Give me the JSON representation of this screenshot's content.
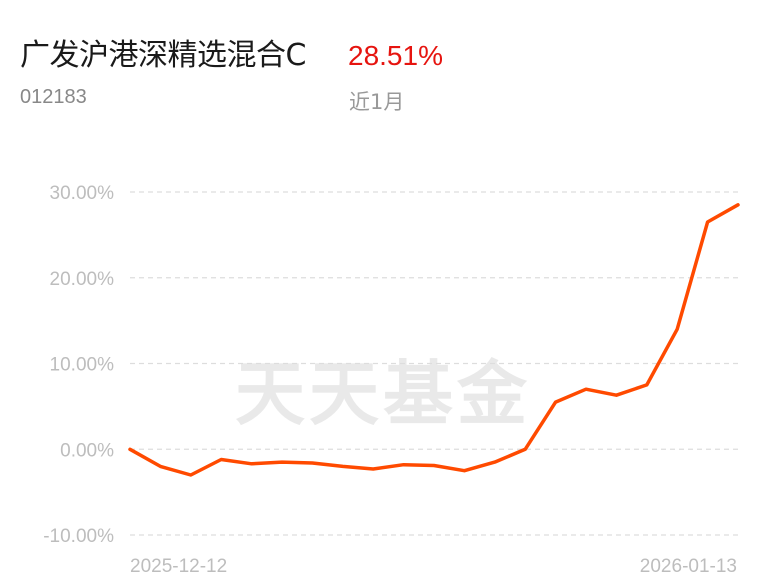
{
  "header": {
    "fund_name": "广发沪港深精选混合C",
    "return_pct": "28.51%",
    "fund_code": "012183",
    "period": "近1月"
  },
  "watermark": "天天基金",
  "colors": {
    "line": "#ff4a00",
    "return": "#e6140f",
    "grid": "#dddddd"
  },
  "chart_data": {
    "type": "line",
    "title": "",
    "xlabel": "",
    "ylabel": "",
    "ylim": [
      -10,
      30
    ],
    "y_ticks": [
      "30.00%",
      "20.00%",
      "10.00%",
      "0.00%",
      "-10.00%"
    ],
    "y_tick_values": [
      30,
      20,
      10,
      0,
      -10
    ],
    "x_tick_labels": [
      "2025-12-12",
      "2026-01-13"
    ],
    "grid": true,
    "series": [
      {
        "values": [
          0.0,
          -2.0,
          -3.0,
          -1.2,
          -1.7,
          -1.5,
          -1.6,
          -2.0,
          -2.3,
          -1.8,
          -1.9,
          -2.5,
          -1.5,
          0.0,
          5.5,
          7.0,
          6.3,
          7.5,
          14.0,
          26.5,
          28.51
        ]
      }
    ]
  }
}
